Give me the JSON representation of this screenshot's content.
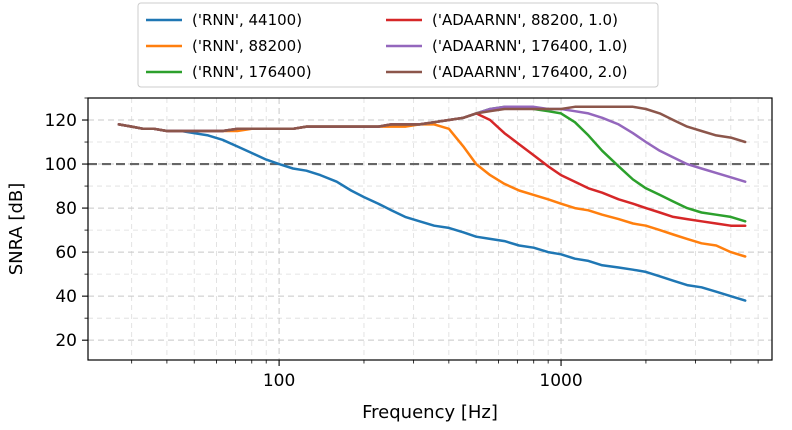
{
  "chart_data": {
    "type": "line",
    "title": "",
    "xlabel": "Frequency [Hz]",
    "ylabel": "SNRA [dB]",
    "xscale": "log",
    "xlim": [
      21,
      5600
    ],
    "ylim": [
      11,
      130
    ],
    "x_ticks": [
      100,
      1000
    ],
    "x_tick_labels": [
      "100",
      "1000"
    ],
    "y_ticks": [
      20,
      40,
      60,
      80,
      100,
      120
    ],
    "y_tick_labels": [
      "20",
      "40",
      "60",
      "80",
      "100",
      "120"
    ],
    "grid": true,
    "legend_position": "top-center, above plot",
    "reference_line": {
      "y": 100,
      "style": "dashed",
      "color": "#666666"
    },
    "x": [
      27,
      30,
      33,
      36,
      40,
      45,
      50,
      56,
      63,
      71,
      80,
      90,
      100,
      112,
      125,
      140,
      160,
      180,
      200,
      225,
      250,
      280,
      315,
      355,
      400,
      450,
      500,
      560,
      630,
      710,
      800,
      900,
      1000,
      1120,
      1250,
      1400,
      1600,
      1800,
      2000,
      2240,
      2500,
      2800,
      3150,
      3550,
      4000,
      4500
    ],
    "series": [
      {
        "name": "('RNN', 44100)",
        "color": "#1f77b4",
        "values": [
          118,
          117,
          116,
          116,
          115,
          115,
          114,
          113,
          111,
          108,
          105,
          102,
          100,
          98,
          97,
          95,
          92,
          88,
          85,
          82,
          79,
          76,
          74,
          72,
          71,
          69,
          67,
          66,
          65,
          63,
          62,
          60,
          59,
          57,
          56,
          54,
          53,
          52,
          51,
          49,
          47,
          45,
          44,
          42,
          40,
          38
        ]
      },
      {
        "name": "('RNN', 88200)",
        "color": "#ff7f0e",
        "values": [
          118,
          117,
          116,
          116,
          115,
          115,
          115,
          115,
          115,
          115,
          116,
          116,
          116,
          116,
          117,
          117,
          117,
          117,
          117,
          117,
          117,
          117,
          118,
          118,
          116,
          108,
          100,
          95,
          91,
          88,
          86,
          84,
          82,
          80,
          79,
          77,
          75,
          73,
          72,
          70,
          68,
          66,
          64,
          63,
          60,
          58
        ]
      },
      {
        "name": "('RNN', 176400)",
        "color": "#2ca02c",
        "values": [
          118,
          117,
          116,
          116,
          115,
          115,
          115,
          115,
          115,
          116,
          116,
          116,
          116,
          116,
          117,
          117,
          117,
          117,
          117,
          117,
          118,
          118,
          118,
          119,
          120,
          121,
          123,
          125,
          126,
          126,
          125,
          124,
          123,
          119,
          113,
          106,
          99,
          93,
          89,
          86,
          83,
          80,
          78,
          77,
          76,
          74
        ]
      },
      {
        "name": "('ADAARNN', 88200, 1.0)",
        "color": "#d62728",
        "values": [
          118,
          117,
          116,
          116,
          115,
          115,
          115,
          115,
          115,
          116,
          116,
          116,
          116,
          116,
          117,
          117,
          117,
          117,
          117,
          117,
          118,
          118,
          118,
          119,
          120,
          121,
          123,
          120,
          114,
          109,
          104,
          99,
          95,
          92,
          89,
          87,
          84,
          82,
          80,
          78,
          76,
          75,
          74,
          73,
          72,
          72
        ]
      },
      {
        "name": "('ADAARNN', 176400, 1.0)",
        "color": "#9467bd",
        "values": [
          118,
          117,
          116,
          116,
          115,
          115,
          115,
          115,
          115,
          116,
          116,
          116,
          116,
          116,
          117,
          117,
          117,
          117,
          117,
          117,
          118,
          118,
          118,
          119,
          120,
          121,
          123,
          125,
          126,
          126,
          126,
          125,
          125,
          124,
          123,
          121,
          118,
          114,
          110,
          106,
          103,
          100,
          98,
          96,
          94,
          92
        ]
      },
      {
        "name": "('ADAARNN', 176400, 2.0)",
        "color": "#8c564b",
        "values": [
          118,
          117,
          116,
          116,
          115,
          115,
          115,
          115,
          115,
          116,
          116,
          116,
          116,
          116,
          117,
          117,
          117,
          117,
          117,
          117,
          118,
          118,
          118,
          119,
          120,
          121,
          123,
          124,
          125,
          125,
          125,
          125,
          125,
          126,
          126,
          126,
          126,
          126,
          125,
          123,
          120,
          117,
          115,
          113,
          112,
          110
        ]
      }
    ]
  }
}
